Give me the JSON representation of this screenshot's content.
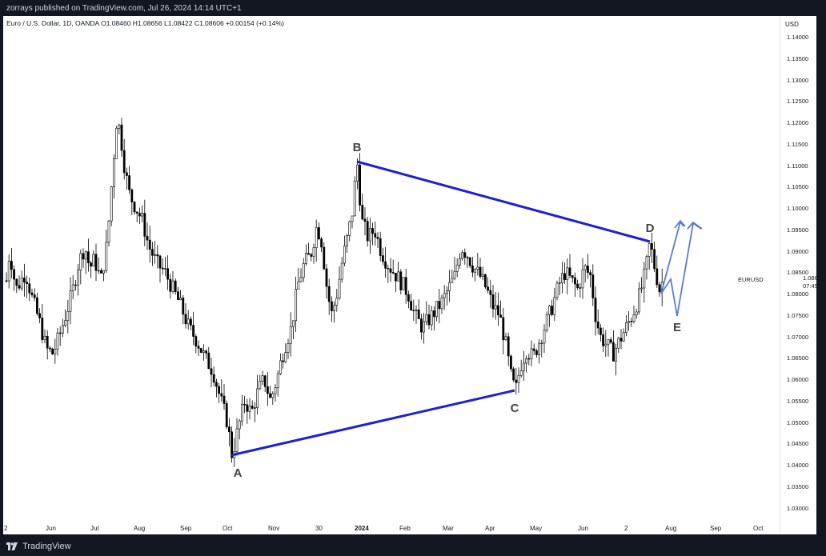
{
  "header": {
    "published": "zorrays published on TradingView.com, Jul 26, 2024 14:14 UTC+1"
  },
  "legend": {
    "text": "Euro / U.S. Dollar, 1D, OANDA  O1.08460  H1.08656  L1.08422  C1.08606  +0.00154 (+0.14%)"
  },
  "price_axis": {
    "currency": "USD",
    "ticks": [
      "1.14000",
      "1.13500",
      "1.13000",
      "1.12500",
      "1.12000",
      "1.11500",
      "1.11000",
      "1.10500",
      "1.10000",
      "1.09500",
      "1.09000",
      "1.08500",
      "1.08000",
      "1.07500",
      "1.07000",
      "1.06500",
      "1.06000",
      "1.05500",
      "1.05000",
      "1.04500",
      "1.04000",
      "1.03500",
      "1.03000"
    ]
  },
  "symbol_label": "EURUSD",
  "current_price": "1.08606",
  "countdown": "07:45:21",
  "time_axis": {
    "labels": [
      "2",
      "Jun",
      "Jul",
      "Aug",
      "Sep",
      "Oct",
      "Nov",
      "30",
      "2024",
      "Feb",
      "Mar",
      "Apr",
      "May",
      "Jun",
      "2",
      "Aug",
      "Sep",
      "Oct"
    ]
  },
  "annotations": {
    "points": [
      "A",
      "B",
      "C",
      "D",
      "E"
    ],
    "line_color": "#1f1fd6",
    "projection_color": "#5a7bdc"
  },
  "footer": {
    "brand": "TradingView"
  },
  "chart_data": {
    "type": "candlestick",
    "series_name": "Euro / U.S. Dollar",
    "interval": "1D",
    "source": "OANDA",
    "ylim": [
      1.03,
      1.1425
    ],
    "pattern_points": {
      "A": 1.045,
      "B": 1.114,
      "C": 1.06,
      "D": 1.095,
      "E": 1.077
    },
    "path": [
      [
        8,
        1.086
      ],
      [
        12,
        1.093
      ],
      [
        20,
        1.084
      ],
      [
        32,
        1.088
      ],
      [
        40,
        1.082
      ],
      [
        50,
        1.076
      ],
      [
        58,
        1.07
      ],
      [
        66,
        1.069
      ],
      [
        74,
        1.073
      ],
      [
        82,
        1.078
      ],
      [
        90,
        1.083
      ],
      [
        98,
        1.09
      ],
      [
        106,
        1.094
      ],
      [
        112,
        1.089
      ],
      [
        118,
        1.091
      ],
      [
        126,
        1.086
      ],
      [
        134,
        1.095
      ],
      [
        140,
        1.11
      ],
      [
        146,
        1.124
      ],
      [
        150,
        1.121
      ],
      [
        156,
        1.112
      ],
      [
        162,
        1.106
      ],
      [
        170,
        1.103
      ],
      [
        178,
        1.1
      ],
      [
        186,
        1.094
      ],
      [
        196,
        1.09
      ],
      [
        206,
        1.088
      ],
      [
        216,
        1.084
      ],
      [
        226,
        1.08
      ],
      [
        236,
        1.075
      ],
      [
        246,
        1.072
      ],
      [
        256,
        1.068
      ],
      [
        266,
        1.065
      ],
      [
        276,
        1.058
      ],
      [
        284,
        1.053
      ],
      [
        290,
        1.045
      ],
      [
        298,
        1.052
      ],
      [
        306,
        1.058
      ],
      [
        314,
        1.055
      ],
      [
        322,
        1.06
      ],
      [
        330,
        1.063
      ],
      [
        338,
        1.058
      ],
      [
        346,
        1.063
      ],
      [
        352,
        1.068
      ],
      [
        358,
        1.072
      ],
      [
        364,
        1.075
      ],
      [
        372,
        1.085
      ],
      [
        380,
        1.09
      ],
      [
        388,
        1.092
      ],
      [
        396,
        1.099
      ],
      [
        402,
        1.095
      ],
      [
        408,
        1.085
      ],
      [
        414,
        1.078
      ],
      [
        420,
        1.082
      ],
      [
        428,
        1.091
      ],
      [
        434,
        1.096
      ],
      [
        440,
        1.102
      ],
      [
        446,
        1.114
      ],
      [
        452,
        1.1
      ],
      [
        460,
        1.096
      ],
      [
        468,
        1.098
      ],
      [
        476,
        1.093
      ],
      [
        484,
        1.09
      ],
      [
        492,
        1.088
      ],
      [
        500,
        1.086
      ],
      [
        510,
        1.083
      ],
      [
        518,
        1.078
      ],
      [
        528,
        1.075
      ],
      [
        536,
        1.077
      ],
      [
        544,
        1.079
      ],
      [
        552,
        1.081
      ],
      [
        560,
        1.084
      ],
      [
        568,
        1.087
      ],
      [
        576,
        1.094
      ],
      [
        584,
        1.092
      ],
      [
        592,
        1.089
      ],
      [
        600,
        1.087
      ],
      [
        608,
        1.084
      ],
      [
        616,
        1.08
      ],
      [
        624,
        1.078
      ],
      [
        632,
        1.071
      ],
      [
        638,
        1.064
      ],
      [
        644,
        1.06
      ],
      [
        650,
        1.066
      ],
      [
        658,
        1.07
      ],
      [
        666,
        1.068
      ],
      [
        674,
        1.072
      ],
      [
        682,
        1.076
      ],
      [
        690,
        1.08
      ],
      [
        698,
        1.085
      ],
      [
        706,
        1.088
      ],
      [
        714,
        1.086
      ],
      [
        722,
        1.084
      ],
      [
        730,
        1.089
      ],
      [
        738,
        1.087
      ],
      [
        744,
        1.078
      ],
      [
        750,
        1.073
      ],
      [
        758,
        1.071
      ],
      [
        766,
        1.069
      ],
      [
        774,
        1.072
      ],
      [
        782,
        1.075
      ],
      [
        790,
        1.078
      ],
      [
        798,
        1.082
      ],
      [
        804,
        1.086
      ],
      [
        808,
        1.09
      ],
      [
        812,
        1.095
      ],
      [
        818,
        1.089
      ],
      [
        824,
        1.084
      ],
      [
        828,
        1.086
      ]
    ]
  }
}
